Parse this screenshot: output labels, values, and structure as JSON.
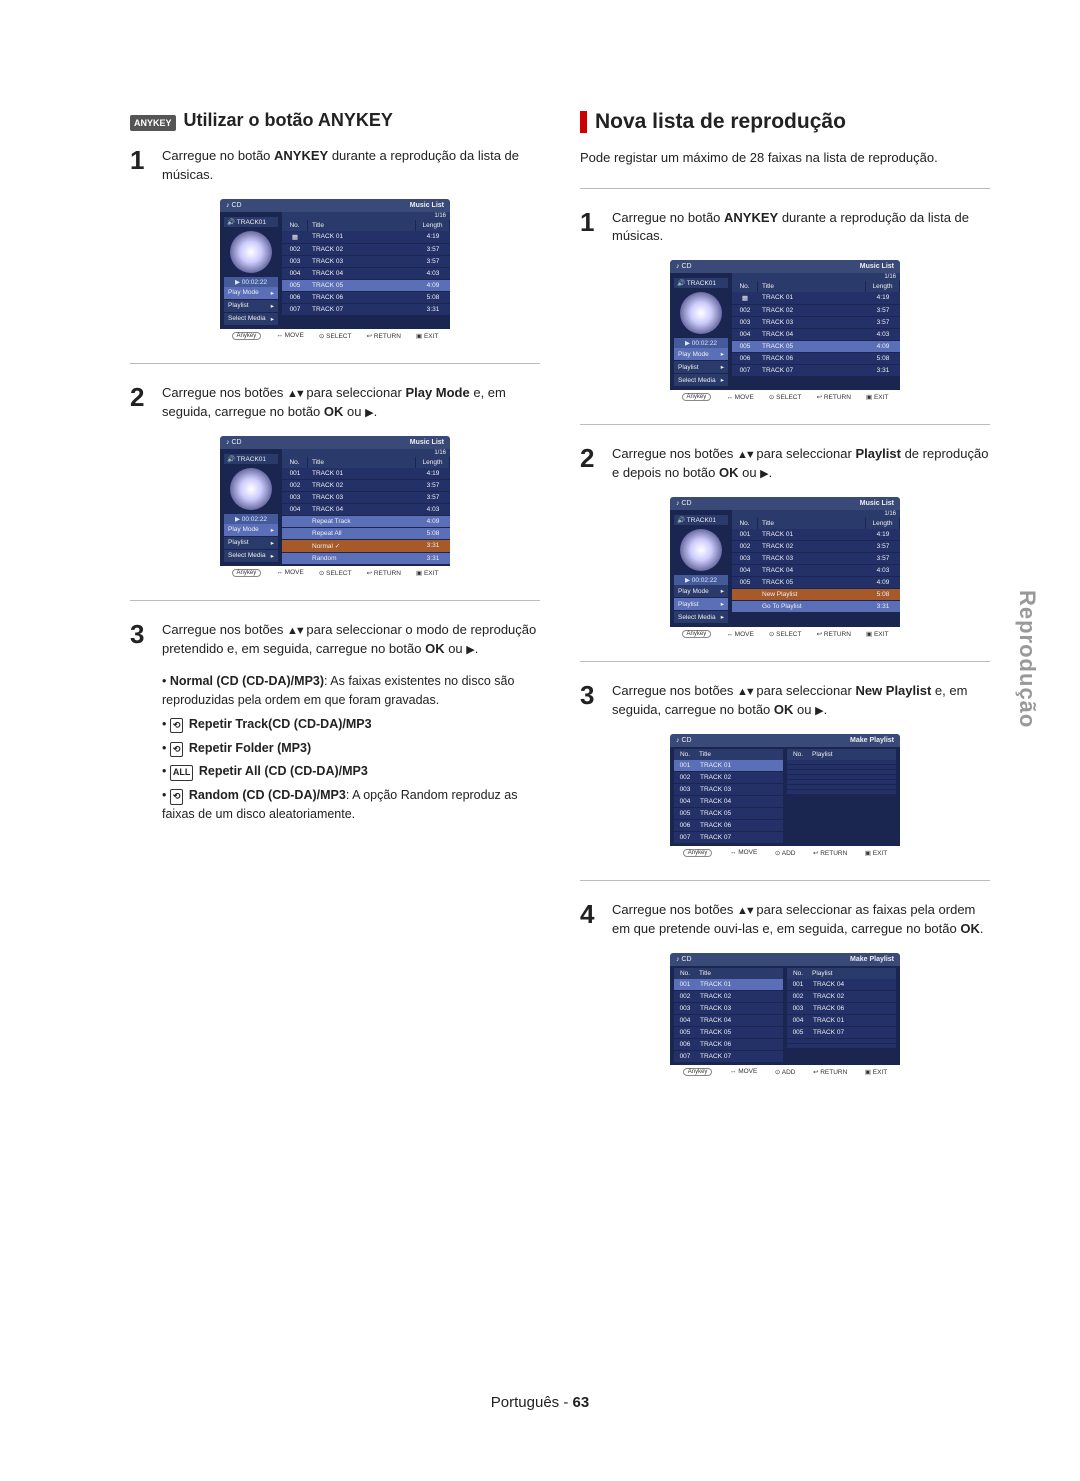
{
  "side_tab": "Reprodução",
  "footer": {
    "lang": "Português",
    "sep": " - ",
    "page": "63"
  },
  "left": {
    "badge": "ANYKEY",
    "title": "Utilizar o botão ANYKEY",
    "step1": {
      "num": "1",
      "prefix": "Carregue no botão ",
      "bold": "ANYKEY",
      "suffix": " durante a reprodução da lista de músicas."
    },
    "step2": {
      "num": "2",
      "text_a": "Carregue nos botões ",
      "arrows": "▲▼",
      "text_b": " para seleccionar ",
      "bold1": "Play Mode",
      "text_c": " e, em seguida, carregue no botão ",
      "bold2": "OK",
      "text_d": " ou ",
      "play": "▶",
      "text_e": "."
    },
    "step3": {
      "num": "3",
      "text_a": "Carregue nos botões ",
      "arrows": "▲▼",
      "text_b": " para seleccionar o modo de reprodução pretendido e, em seguida, carregue no botão ",
      "bold": "OK",
      "text_c": " ou ",
      "play": "▶",
      "text_d": "."
    },
    "bullets": {
      "b1": {
        "bold": "Normal (CD (CD-DA)/MP3)",
        "rest": ": As faixas existentes no disco são reproduzidas pela ordem em que foram gravadas."
      },
      "b2": {
        "icon": "⟲",
        "text": "Repetir Track(CD (CD-DA)/MP3"
      },
      "b3": {
        "icon": "⟲",
        "text": "Repetir Folder (MP3)"
      },
      "b4": {
        "icon": "ALL",
        "text": "Repetir All (CD (CD-DA)/MP3"
      },
      "b5": {
        "icon": "⟲",
        "bold": "Random (CD (CD-DA)/MP3",
        "rest": ": A opção Random reproduz as faixas de um disco aleatoriamente."
      }
    }
  },
  "right": {
    "title": "Nova lista de reprodução",
    "intro": "Pode registar um máximo de 28 faixas na lista de reprodução.",
    "step1": {
      "num": "1",
      "prefix": "Carregue no botão ",
      "bold": "ANYKEY",
      "suffix": " durante a reprodução da lista de músicas."
    },
    "step2": {
      "num": "2",
      "text_a": "Carregue nos botões ",
      "arrows": "▲▼",
      "text_b": " para seleccionar ",
      "bold1": "Playlist",
      "text_c": " de reprodução e depois no botão ",
      "bold2": "OK",
      "text_d": " ou ",
      "play": "▶",
      "text_e": "."
    },
    "step3": {
      "num": "3",
      "text_a": "Carregue nos botões ",
      "arrows": "▲▼",
      "text_b": " para seleccionar ",
      "bold1": "New Playlist",
      "text_c": " e, em seguida, carregue no botão ",
      "bold2": "OK",
      "text_d": " ou ",
      "play": "▶",
      "text_e": "."
    },
    "step4": {
      "num": "4",
      "text_a": "Carregue nos botões ",
      "arrows": "▲▼",
      "text_b": " para seleccionar as faixas pela ordem em que pretende ouvi-las e, em seguida, carregue no botão ",
      "bold": "OK",
      "text_c": "."
    }
  },
  "figures": {
    "music_list_title": "Music List",
    "make_playlist_title": "Make Playlist",
    "cd": "CD",
    "track01": "TRACK01",
    "counter": "1/16",
    "time": "00:02:22",
    "headers": {
      "no": "No.",
      "title": "Title",
      "length": "Length",
      "playlist": "Playlist"
    },
    "tracks": [
      {
        "no": "001",
        "title": "TRACK 01",
        "len": "4:19"
      },
      {
        "no": "002",
        "title": "TRACK 02",
        "len": "3:57"
      },
      {
        "no": "003",
        "title": "TRACK 03",
        "len": "3:57"
      },
      {
        "no": "004",
        "title": "TRACK 04",
        "len": "4:03"
      },
      {
        "no": "005",
        "title": "TRACK 05",
        "len": "4:09"
      },
      {
        "no": "006",
        "title": "TRACK 06",
        "len": "5:08"
      },
      {
        "no": "007",
        "title": "TRACK 07",
        "len": "3:31"
      }
    ],
    "side_items": [
      "Play Mode",
      "Playlist",
      "Select Media"
    ],
    "mode_items": [
      "Repeat Track",
      "Repeat All",
      "Normal",
      "Random"
    ],
    "playlist_items": [
      "New Playlist",
      "Go To Playlist"
    ],
    "selected_playlist": [
      {
        "no": "001",
        "title": "TRACK 04"
      },
      {
        "no": "002",
        "title": "TRACK 02"
      },
      {
        "no": "003",
        "title": "TRACK 06"
      },
      {
        "no": "004",
        "title": "TRACK 01"
      },
      {
        "no": "005",
        "title": "TRACK 07"
      }
    ],
    "bottom": {
      "anykey": "Anykey",
      "move": "MOVE",
      "select": "SELECT",
      "add": "ADD",
      "return": "RETURN",
      "exit": "EXIT"
    }
  }
}
